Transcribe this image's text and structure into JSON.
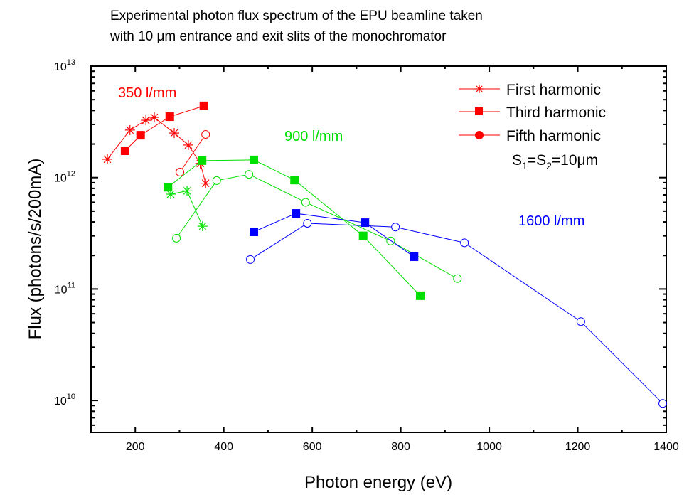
{
  "chart_data": {
    "type": "line",
    "title_lines": [
      "Experimental photon flux spectrum of the EPU beamline taken",
      "with 10 μm entrance and exit slits of the monochromator"
    ],
    "xlabel": "Photon energy (eV)",
    "ylabel": "Flux (photons/s/200mA)",
    "xlim": [
      100,
      1400
    ],
    "ylim": [
      5100000000.0,
      10000000000000.0
    ],
    "yscale": "log",
    "grid": false,
    "x_ticks": [
      "200",
      "400",
      "600",
      "800",
      "1000",
      "1200",
      "1400"
    ],
    "y_ticks": [
      {
        "base": "10",
        "exp": "10"
      },
      {
        "base": "10",
        "exp": "11"
      },
      {
        "base": "10",
        "exp": "12"
      },
      {
        "base": "10",
        "exp": "13"
      }
    ],
    "legend": {
      "position": "top-right",
      "entries": [
        "First harmonic",
        "Third harmonic",
        "Fifth harmonic"
      ],
      "note": {
        "s": "S",
        "sub1": "1",
        "eq1": "=S",
        "sub2": "2",
        "eq2": "=10μm"
      }
    },
    "annotations": [
      {
        "text": "350 l/mm",
        "color": "#ff0000"
      },
      {
        "text": "900 l/mm",
        "color": "#00e000"
      },
      {
        "text": "1600 l/mm",
        "color": "#0000ff"
      }
    ],
    "series": [
      {
        "grating": "350 l/mm",
        "harmonic": "First harmonic",
        "marker": "asterisk",
        "color": "#ff0000",
        "x": [
          137,
          188,
          224,
          243,
          288,
          320,
          347,
          359
        ],
        "y": [
          1460000000000.0,
          2670000000000.0,
          3270000000000.0,
          3470000000000.0,
          2510000000000.0,
          1960000000000.0,
          1340000000000.0,
          890000000000.0
        ]
      },
      {
        "grating": "350 l/mm",
        "harmonic": "Third harmonic",
        "marker": "square",
        "color": "#ff0000",
        "x": [
          177,
          212,
          278,
          355
        ],
        "y": [
          1740000000000.0,
          2400000000000.0,
          3520000000000.0,
          4400000000000.0
        ]
      },
      {
        "grating": "350 l/mm",
        "harmonic": "Fifth harmonic",
        "marker": "circle",
        "color": "#ff0000",
        "x": [
          301,
          359
        ],
        "y": [
          1120000000000.0,
          2440000000000.0
        ]
      },
      {
        "grating": "900 l/mm",
        "harmonic": "First harmonic",
        "marker": "asterisk",
        "color": "#00e000",
        "x": [
          280,
          317,
          352
        ],
        "y": [
          710000000000.0,
          760000000000.0,
          366000000000.0
        ]
      },
      {
        "grating": "900 l/mm",
        "harmonic": "Third harmonic",
        "marker": "square",
        "color": "#00e000",
        "x": [
          274,
          351,
          468,
          560,
          715,
          844
        ],
        "y": [
          820000000000.0,
          1420000000000.0,
          1440000000000.0,
          950000000000.0,
          300000000000.0,
          87000000000.0
        ]
      },
      {
        "grating": "900 l/mm",
        "harmonic": "Fifth harmonic",
        "marker": "circle",
        "color": "#00e000",
        "x": [
          293,
          384,
          457,
          585,
          777,
          928
        ],
        "y": [
          286000000000.0,
          940000000000.0,
          1070000000000.0,
          600000000000.0,
          270000000000.0,
          124000000000.0
        ]
      },
      {
        "grating": "1600 l/mm",
        "harmonic": "Third harmonic",
        "marker": "square",
        "color": "#0000ff",
        "x": [
          468,
          563,
          719,
          830
        ],
        "y": [
          326000000000.0,
          477000000000.0,
          394000000000.0,
          195000000000.0
        ]
      },
      {
        "grating": "1600 l/mm",
        "harmonic": "Fifth harmonic",
        "marker": "circle",
        "color": "#0000ff",
        "x": [
          460,
          589,
          788,
          944,
          1207,
          1392
        ],
        "y": [
          184000000000.0,
          389000000000.0,
          360000000000.0,
          260000000000.0,
          51000000000.0,
          9400000000.0
        ]
      }
    ]
  }
}
